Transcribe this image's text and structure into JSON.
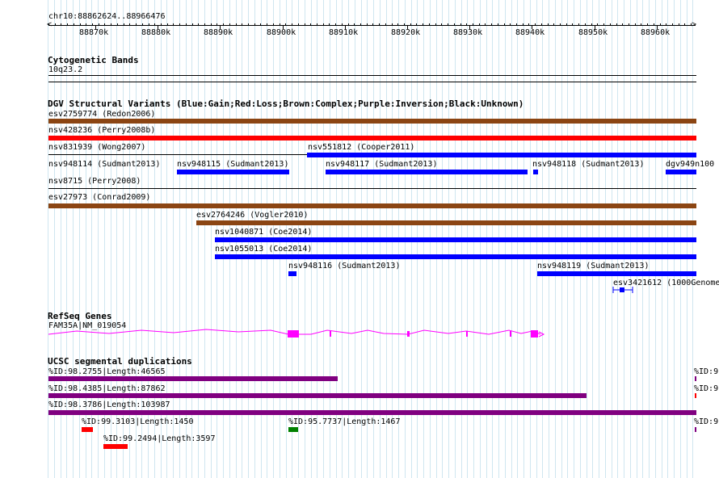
{
  "ruler": {
    "position": "chr10:88862624..88966476",
    "ticks": [
      "88870k",
      "88880k",
      "88890k",
      "88900k",
      "88910k",
      "88920k",
      "88930k",
      "88940k",
      "88950k",
      "88960k"
    ]
  },
  "cytoband": {
    "title": "Cytogenetic Bands",
    "band": "10q23.2"
  },
  "dgv": {
    "title": "DGV Structural Variants (Blue:Gain;Red:Loss;Brown:Complex;Purple:Inversion;Black:Unknown)",
    "items": [
      {
        "id": "esv2759774",
        "label": "esv2759774 (Redon2006)",
        "color": "#8b4513"
      },
      {
        "id": "nsv428236",
        "label": "nsv428236 (Perry2008b)",
        "color": "#ff0000"
      },
      {
        "id": "nsv831939",
        "label": "nsv831939 (Wong2007)",
        "color": "#000000"
      },
      {
        "id": "nsv551812",
        "label": "nsv551812 (Cooper2011)",
        "color": "#0000ff"
      },
      {
        "id": "nsv948114",
        "label": "nsv948114 (Sudmant2013)",
        "color": "#0000ff"
      },
      {
        "id": "nsv948115",
        "label": "nsv948115 (Sudmant2013)",
        "color": "#0000ff"
      },
      {
        "id": "nsv948117",
        "label": "nsv948117 (Sudmant2013)",
        "color": "#0000ff"
      },
      {
        "id": "nsv948118",
        "label": "nsv948118 (Sudmant2013)",
        "color": "#0000ff"
      },
      {
        "id": "dgv949n100",
        "label": "dgv949n100",
        "color": "#0000ff"
      },
      {
        "id": "nsv8715",
        "label": "nsv8715 (Perry2008)",
        "color": "#000000"
      },
      {
        "id": "esv27973",
        "label": "esv27973 (Conrad2009)",
        "color": "#8b4513"
      },
      {
        "id": "esv2764246",
        "label": "esv2764246 (Vogler2010)",
        "color": "#8b4513"
      },
      {
        "id": "nsv1040871",
        "label": "nsv1040871 (Coe2014)",
        "color": "#0000ff"
      },
      {
        "id": "nsv1055013",
        "label": "nsv1055013 (Coe2014)",
        "color": "#0000ff"
      },
      {
        "id": "nsv948116",
        "label": "nsv948116 (Sudmant2013)",
        "color": "#0000ff"
      },
      {
        "id": "nsv948119",
        "label": "nsv948119 (Sudmant2013)",
        "color": "#0000ff"
      },
      {
        "id": "esv3421612",
        "label": "esv3421612 (1000Genome",
        "color": "#0000ff"
      }
    ]
  },
  "refseq": {
    "title": "RefSeq Genes",
    "gene": "FAM35A|NM_019054",
    "color": "#ff00ff"
  },
  "segdup": {
    "title": "UCSC segmental duplications",
    "items": [
      {
        "label": "%ID:98.2755|Length:46565",
        "color": "#800080"
      },
      {
        "label": "%ID:98.4385|Length:87862",
        "color": "#800080"
      },
      {
        "label": "%ID:98.3786|Length:103987",
        "color": "#800080"
      },
      {
        "label": "%ID:99.3103|Length:1450",
        "color": "#ff0000"
      },
      {
        "label": "%ID:95.7737|Length:1467",
        "color": "#008000"
      },
      {
        "label": "%ID:99.2494|Length:3597",
        "color": "#ff0000"
      }
    ],
    "edge_labels": [
      "%ID:9",
      "%ID:9",
      "%ID:9"
    ]
  }
}
